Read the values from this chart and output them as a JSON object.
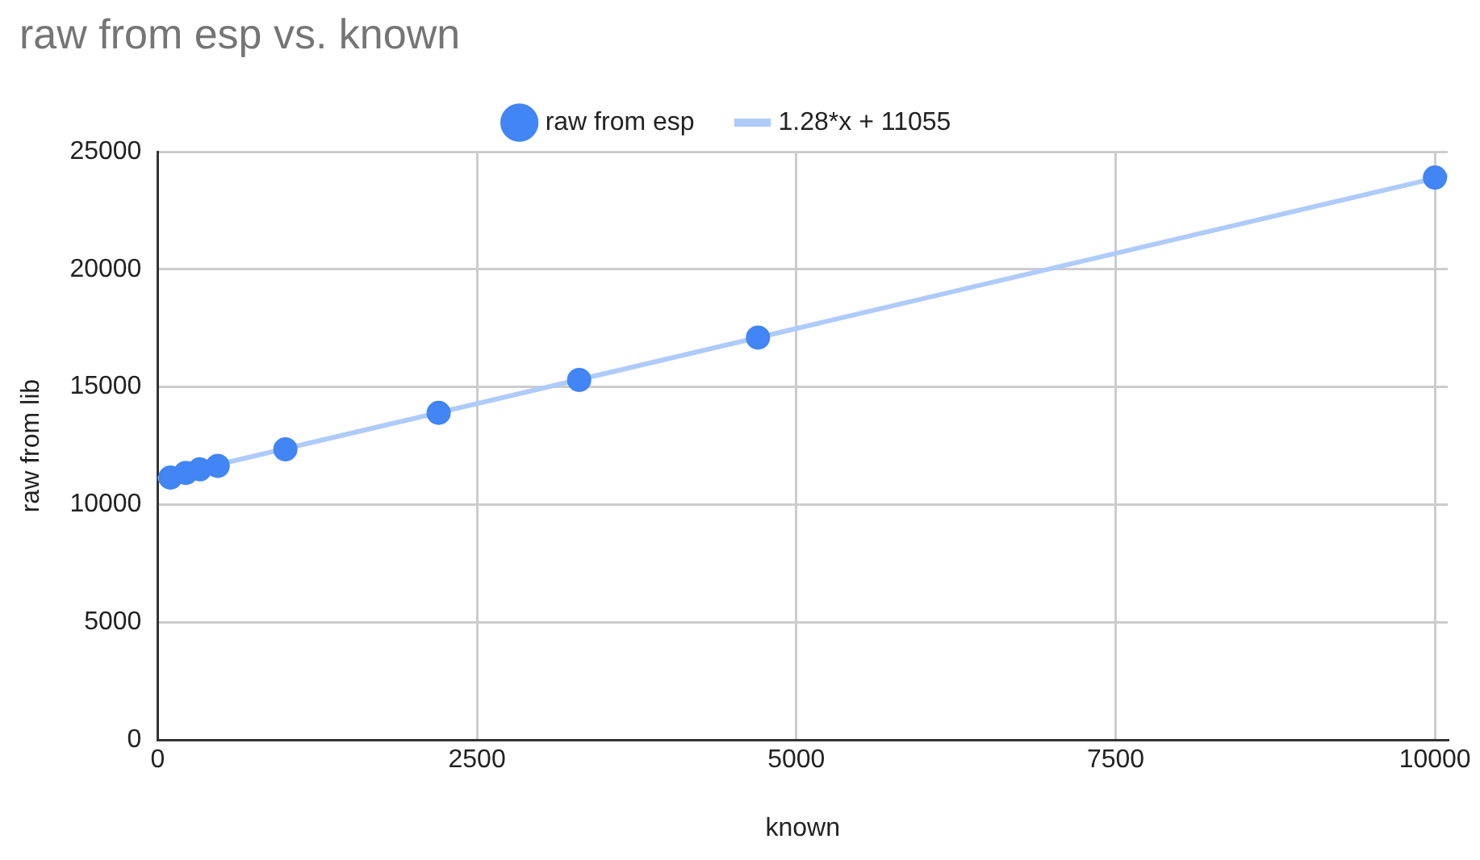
{
  "chart_data": {
    "type": "scatter",
    "title": "raw from esp vs. known",
    "xlabel": "known",
    "ylabel": "raw from lib",
    "series": [
      {
        "name": "raw from esp",
        "color": "#4285f4",
        "x": [
          100,
          220,
          330,
          470,
          1000,
          2200,
          3300,
          4700,
          10000
        ],
        "values": [
          11150,
          11350,
          11500,
          11650,
          12350,
          13900,
          15300,
          17100,
          23900
        ],
        "marker": "circle"
      },
      {
        "name": "1.28*x + 11055",
        "type": "line",
        "color": "#aecbfa",
        "x": [
          0,
          10100
        ],
        "values": [
          11100,
          24000
        ],
        "marker": "none",
        "line_style": "solid"
      }
    ],
    "xlim": [
      0,
      10100
    ],
    "xticks": [
      0,
      2500,
      5000,
      7500,
      10000
    ],
    "ylim": [
      0,
      25000
    ],
    "yticks": [
      0,
      5000,
      10000,
      15000,
      20000,
      25000
    ],
    "grid": true,
    "legend": "top"
  }
}
